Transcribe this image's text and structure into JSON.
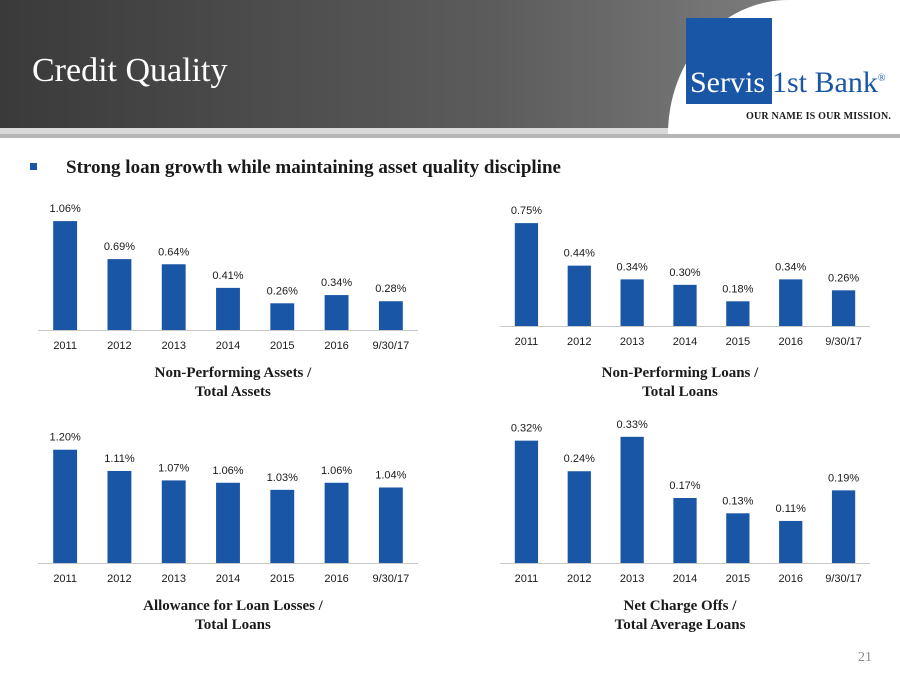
{
  "title": "Credit Quality",
  "logo": {
    "name_part1": "Servis",
    "name_part2": "1st Bank",
    "registered": "®",
    "tagline": "OUR NAME IS OUR MISSION."
  },
  "subtitle": "Strong loan growth while maintaining asset quality discipline",
  "page_number": "21",
  "colors": {
    "bar": "#1a56a6",
    "header_dark": "#3a3a3a",
    "brand_blue": "#1a56a6"
  },
  "chart_data": [
    {
      "type": "bar",
      "title": "Non-Performing Assets / Total Assets",
      "title_lines": [
        "Non-Performing Assets /",
        "Total Assets"
      ],
      "categories": [
        "2011",
        "2012",
        "2013",
        "2014",
        "2015",
        "2016",
        "9/30/17"
      ],
      "values": [
        1.06,
        0.69,
        0.64,
        0.41,
        0.26,
        0.34,
        0.28
      ],
      "labels": [
        "1.06%",
        "0.69%",
        "0.64%",
        "0.41%",
        "0.26%",
        "0.34%",
        "0.28%"
      ],
      "ylim": [
        0,
        1.1
      ],
      "grid": false
    },
    {
      "type": "bar",
      "title": "Non-Performing Loans / Total Loans",
      "title_lines": [
        "Non-Performing Loans /",
        "Total Loans"
      ],
      "categories": [
        "2011",
        "2012",
        "2013",
        "2014",
        "2015",
        "2016",
        "9/30/17"
      ],
      "values": [
        0.75,
        0.44,
        0.34,
        0.3,
        0.18,
        0.34,
        0.26
      ],
      "labels": [
        "0.75%",
        "0.44%",
        "0.34%",
        "0.30%",
        "0.18%",
        "0.34%",
        "0.26%"
      ],
      "ylim": [
        0,
        0.78
      ],
      "grid": false
    },
    {
      "type": "bar",
      "title": "Allowance for Loan Losses / Total Loans",
      "title_lines": [
        "Allowance for Loan Losses /",
        "Total Loans"
      ],
      "categories": [
        "2011",
        "2012",
        "2013",
        "2014",
        "2015",
        "2016",
        "9/30/17"
      ],
      "values": [
        1.2,
        1.11,
        1.07,
        1.06,
        1.03,
        1.06,
        1.04
      ],
      "labels": [
        "1.20%",
        "1.11%",
        "1.07%",
        "1.06%",
        "1.03%",
        "1.06%",
        "1.04%"
      ],
      "ylim": [
        0.72,
        1.22
      ],
      "grid": false
    },
    {
      "type": "bar",
      "title": "Net Charge Offs / Total Average Loans",
      "title_lines": [
        "Net Charge Offs /",
        "Total Average Loans"
      ],
      "categories": [
        "2011",
        "2012",
        "2013",
        "2014",
        "2015",
        "2016",
        "9/30/17"
      ],
      "values": [
        0.32,
        0.24,
        0.33,
        0.17,
        0.13,
        0.11,
        0.19
      ],
      "labels": [
        "0.32%",
        "0.24%",
        "0.33%",
        "0.17%",
        "0.13%",
        "0.11%",
        "0.19%"
      ],
      "ylim": [
        0,
        0.34
      ],
      "grid": false
    }
  ]
}
